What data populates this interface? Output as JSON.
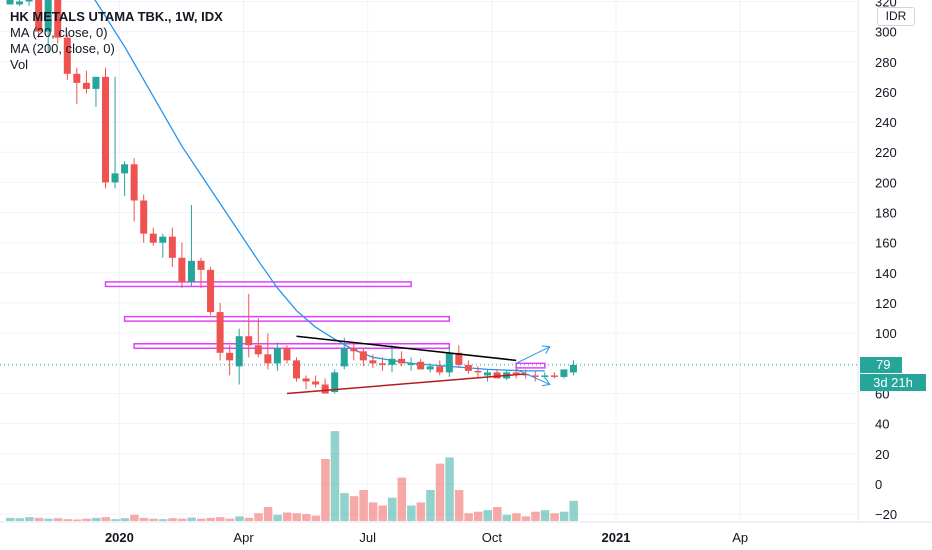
{
  "legend": {
    "title": "HK METALS UTAMA TBK., 1W, IDX",
    "ma20": "MA (20, close, 0)",
    "ma200": "MA (200, close, 0)",
    "vol": "Vol"
  },
  "currency": "IDR",
  "last_price_label": "79",
  "countdown_label": "3d 21h",
  "colors": {
    "up": "#26a69a",
    "down": "#ef5350",
    "ma20": "#2196f3",
    "zone": "#e040fb",
    "resistance": "#000000",
    "support": "#b71c1c",
    "projection": "#2196f3",
    "grid": "#f0f3fa",
    "axis_text": "#131722"
  },
  "chart_data": {
    "type": "candlestick",
    "y_axis": {
      "ticks": [
        "−20",
        "0",
        "20",
        "40",
        "60",
        "80",
        "100",
        "120",
        "140",
        "160",
        "180",
        "200",
        "220",
        "240",
        "260",
        "280",
        "300",
        "320"
      ],
      "tick_values": [
        -20,
        0,
        20,
        40,
        60,
        80,
        100,
        120,
        140,
        160,
        180,
        200,
        220,
        240,
        260,
        280,
        300,
        320
      ],
      "ylim": [
        -24,
        330
      ]
    },
    "x_axis": {
      "ticks": [
        "2020",
        "Apr",
        "Jul",
        "Oct",
        "2021",
        "Ap"
      ],
      "tick_bars": [
        8,
        21,
        34,
        47,
        60,
        73
      ],
      "bold": [
        "2020",
        "2021"
      ]
    },
    "grid": true,
    "candles": [
      [
        318,
        322,
        318,
        322
      ],
      [
        318,
        322,
        317,
        320
      ],
      [
        320,
        322,
        317,
        321
      ],
      [
        322,
        328,
        296,
        300
      ],
      [
        300,
        322,
        286,
        322
      ],
      [
        322,
        325,
        292,
        296
      ],
      [
        296,
        298,
        268,
        272
      ],
      [
        272,
        276,
        252,
        266
      ],
      [
        266,
        274,
        259,
        262
      ],
      [
        262,
        270,
        250,
        270
      ],
      [
        270,
        276,
        196,
        200
      ],
      [
        200,
        270,
        196,
        206
      ],
      [
        206,
        214,
        191,
        212
      ],
      [
        212,
        216,
        174,
        188
      ],
      [
        188,
        192,
        160,
        166
      ],
      [
        166,
        170,
        158,
        160
      ],
      [
        160,
        166,
        150,
        164
      ],
      [
        164,
        170,
        144,
        150
      ],
      [
        150,
        160,
        130,
        134
      ],
      [
        134,
        185,
        131,
        148
      ],
      [
        148,
        150,
        130,
        142
      ],
      [
        142,
        144,
        112,
        114
      ],
      [
        114,
        120,
        82,
        87
      ],
      [
        87,
        92,
        72,
        82
      ],
      [
        78,
        103,
        66,
        98
      ],
      [
        98,
        126,
        84,
        92
      ],
      [
        92,
        110,
        84,
        86
      ],
      [
        86,
        100,
        76,
        80
      ],
      [
        80,
        94,
        75,
        90
      ],
      [
        90,
        92,
        80,
        82
      ],
      [
        82,
        84,
        68,
        70
      ],
      [
        70,
        72,
        63,
        68
      ],
      [
        68,
        72,
        64,
        66
      ],
      [
        66,
        70,
        60,
        60
      ],
      [
        61,
        76,
        60,
        74
      ],
      [
        78,
        97,
        76,
        90
      ],
      [
        90,
        94,
        82,
        88
      ],
      [
        88,
        90,
        78,
        82
      ],
      [
        82,
        86,
        77,
        80
      ],
      [
        80,
        84,
        75,
        79
      ],
      [
        79,
        92,
        74,
        83
      ],
      [
        83,
        88,
        78,
        80
      ],
      [
        80,
        84,
        75,
        80
      ],
      [
        81,
        83,
        76,
        76
      ],
      [
        76,
        80,
        74,
        78
      ],
      [
        78,
        82,
        72,
        74
      ],
      [
        74,
        90,
        71,
        87
      ],
      [
        87,
        92,
        77,
        79
      ],
      [
        79,
        82,
        73,
        75
      ],
      [
        75,
        78,
        71,
        74
      ],
      [
        72,
        76,
        68,
        74
      ],
      [
        74,
        76,
        70,
        70
      ],
      [
        70,
        76,
        69,
        74
      ],
      [
        74,
        78,
        70,
        73
      ],
      [
        73,
        76,
        70,
        72
      ],
      [
        72,
        75,
        68,
        71
      ],
      [
        71,
        74,
        70,
        72
      ],
      [
        72,
        74,
        70,
        71
      ],
      [
        71,
        76,
        70,
        76
      ],
      [
        74,
        82,
        72,
        79
      ]
    ],
    "volume": [
      2.0,
      1.8,
      2.5,
      2.0,
      1.5,
      1.8,
      1.2,
      1.0,
      1.5,
      2.0,
      2.5,
      1.2,
      1.8,
      4.0,
      2.0,
      1.5,
      1.2,
      1.8,
      1.5,
      2.2,
      1.5,
      2.0,
      2.5,
      1.5,
      3.0,
      2.0,
      5.0,
      9.0,
      4.0,
      5.5,
      5.0,
      4.5,
      3.5,
      40.0,
      58.0,
      18.0,
      16.0,
      20.0,
      12.0,
      10.0,
      15.0,
      28.0,
      10.0,
      12.0,
      20.0,
      37.0,
      41.0,
      20.0,
      5.0,
      6.0,
      7.0,
      9.0,
      4.0,
      5.0,
      3.0,
      6.0,
      7.0,
      5.0,
      6.0,
      13.0
    ],
    "ma20": [
      [
        8,
        330
      ],
      [
        10,
        310
      ],
      [
        12,
        290
      ],
      [
        14,
        268
      ],
      [
        16,
        246
      ],
      [
        18,
        224
      ],
      [
        20,
        205
      ],
      [
        22,
        186
      ],
      [
        24,
        167
      ],
      [
        26,
        148
      ],
      [
        28,
        130
      ],
      [
        30,
        115
      ],
      [
        32,
        104
      ],
      [
        34,
        96
      ],
      [
        36,
        89
      ],
      [
        38,
        84
      ],
      [
        40,
        82
      ],
      [
        42,
        80
      ],
      [
        44,
        79
      ],
      [
        46,
        78
      ],
      [
        48,
        77
      ],
      [
        50,
        76
      ],
      [
        52,
        75.5
      ],
      [
        54,
        75
      ],
      [
        56,
        75
      ]
    ],
    "annotations": {
      "zones": [
        {
          "from": 10,
          "to": 42,
          "low": 131,
          "high": 134
        },
        {
          "from": 12,
          "to": 46,
          "low": 108,
          "high": 111
        },
        {
          "from": 13,
          "to": 46,
          "low": 90,
          "high": 93
        },
        {
          "from": 53,
          "to": 56,
          "low": 77,
          "high": 80
        }
      ],
      "resistance": {
        "from": [
          30,
          98
        ],
        "to": [
          53,
          82
        ]
      },
      "support": {
        "from": [
          29,
          60
        ],
        "to": [
          54,
          73
        ]
      },
      "projections": [
        {
          "from": [
            53,
            80
          ],
          "to": [
            56,
            91
          ]
        },
        {
          "from": [
            53,
            76
          ],
          "to": [
            56,
            66
          ]
        }
      ],
      "current_price_line": 79
    }
  }
}
